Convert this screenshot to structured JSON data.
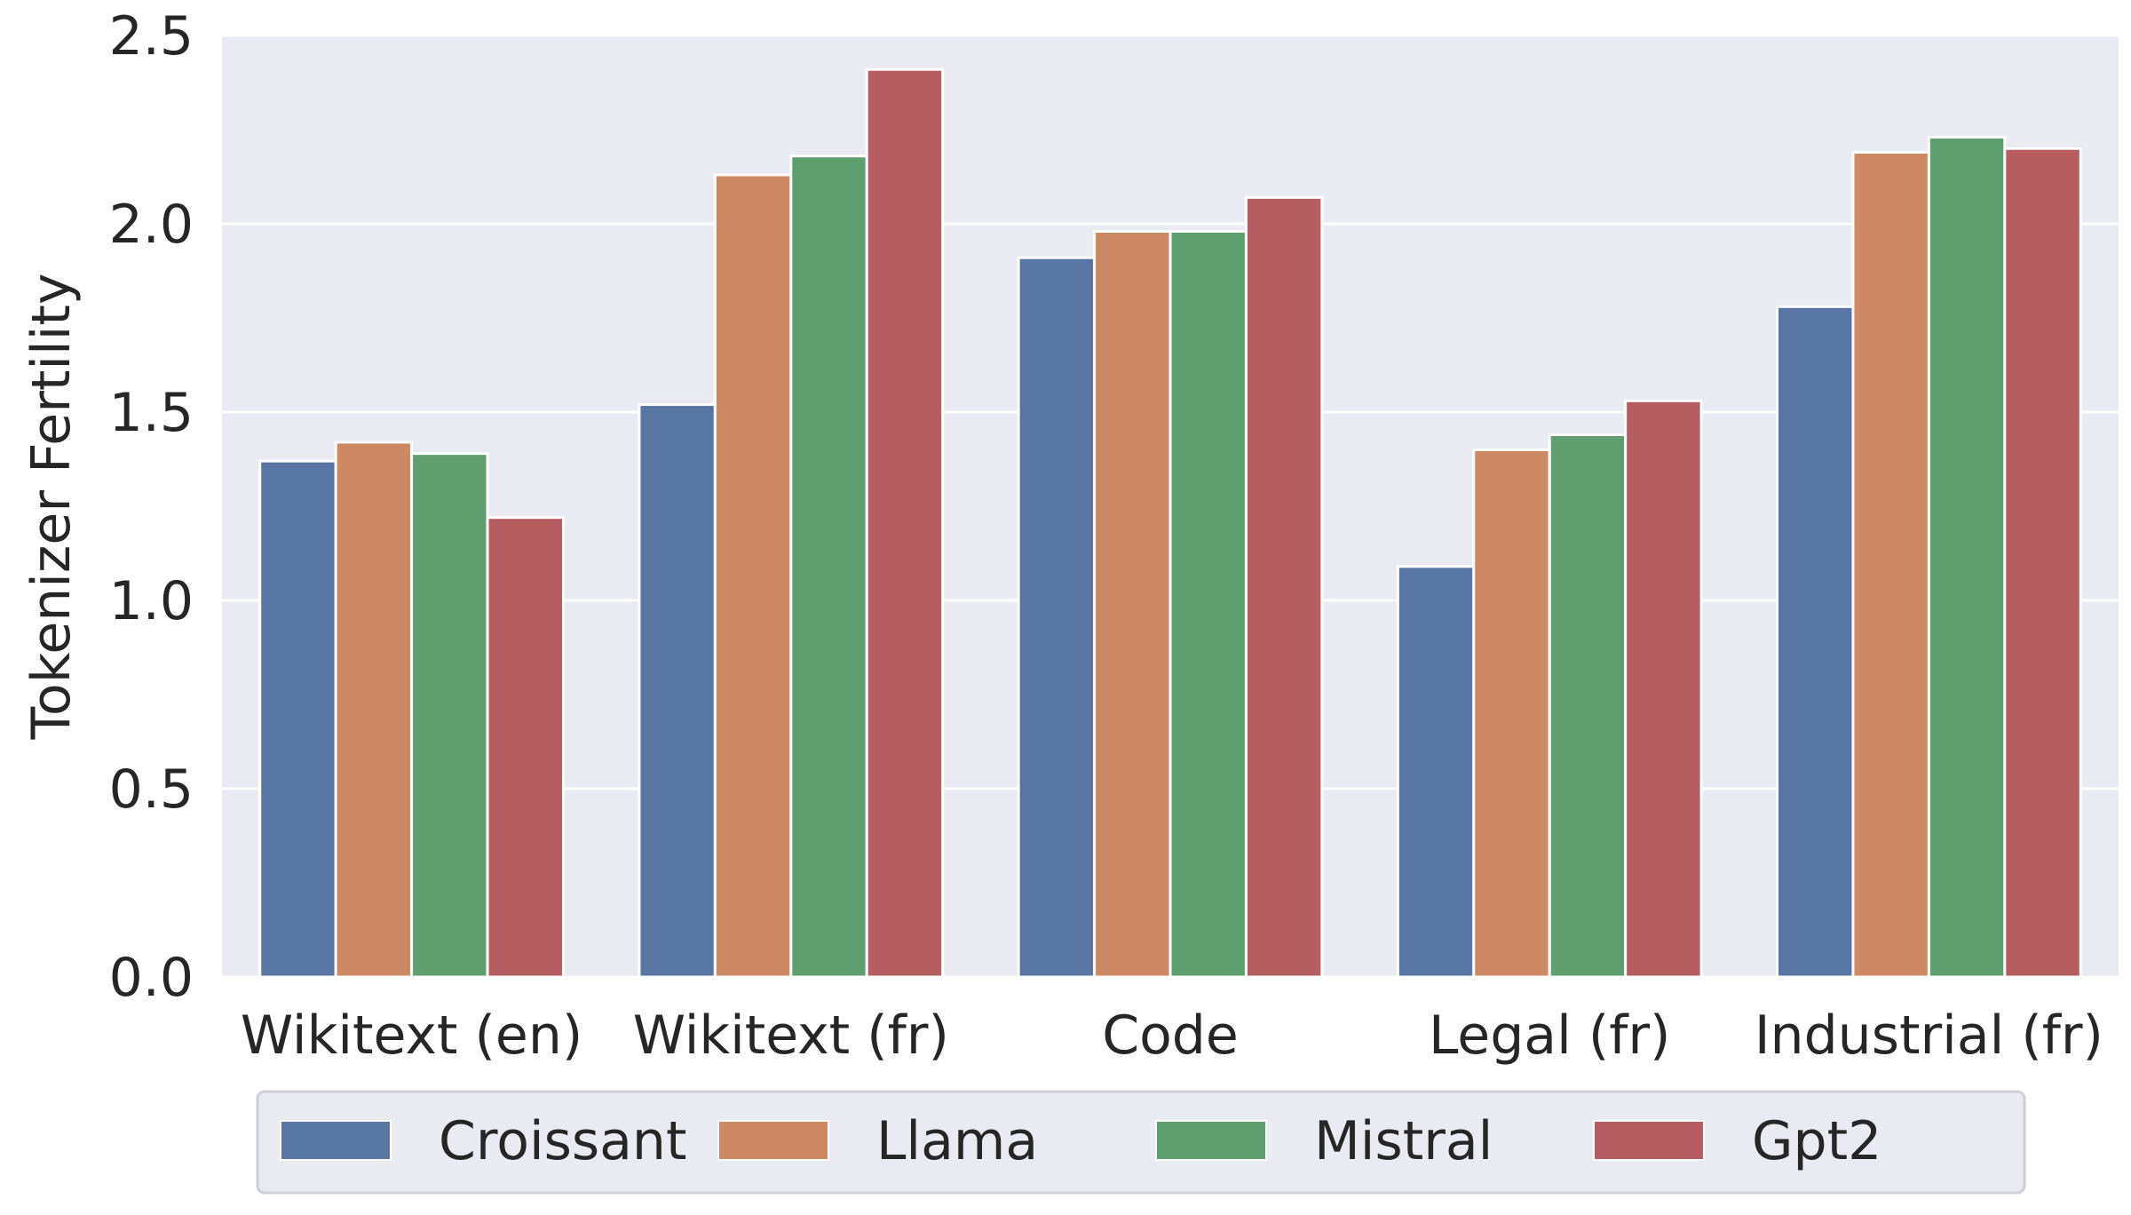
{
  "chart_data": {
    "type": "bar",
    "title": "",
    "xlabel": "",
    "ylabel": "Tokenizer Fertility",
    "ylim": [
      0,
      2.5
    ],
    "yticks": [
      "0.0",
      "0.5",
      "1.0",
      "1.5",
      "2.0",
      "2.5"
    ],
    "grid": true,
    "legend_position": "bottom",
    "categories": [
      "Wikitext (en)",
      "Wikitext (fr)",
      "Code",
      "Legal (fr)",
      "Industrial (fr)"
    ],
    "series": [
      {
        "name": "Croissant",
        "color": "#5875a4",
        "values": [
          1.37,
          1.52,
          1.91,
          1.09,
          1.78
        ]
      },
      {
        "name": "Llama",
        "color": "#cc8963",
        "values": [
          1.42,
          2.13,
          1.98,
          1.4,
          2.19
        ]
      },
      {
        "name": "Mistral",
        "color": "#5f9e6e",
        "values": [
          1.39,
          2.18,
          1.98,
          1.44,
          2.23
        ]
      },
      {
        "name": "Gpt2",
        "color": "#b55d60",
        "values": [
          1.22,
          2.41,
          2.07,
          1.53,
          2.2
        ]
      }
    ],
    "background_color": "#eaeaf2",
    "grid_color": "#ffffff"
  }
}
